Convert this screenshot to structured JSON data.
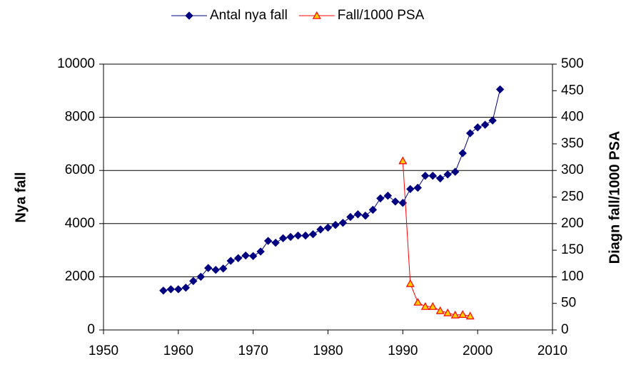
{
  "chart_data": {
    "type": "line",
    "x": [
      1958,
      1959,
      1960,
      1961,
      1962,
      1963,
      1964,
      1965,
      1966,
      1967,
      1968,
      1969,
      1970,
      1971,
      1972,
      1973,
      1974,
      1975,
      1976,
      1977,
      1978,
      1979,
      1980,
      1981,
      1982,
      1983,
      1984,
      1985,
      1986,
      1987,
      1988,
      1989,
      1990,
      1991,
      1992,
      1993,
      1994,
      1995,
      1996,
      1997,
      1998,
      1999,
      2000,
      2001,
      2002,
      2003
    ],
    "series": [
      {
        "name": "Antal nya fall",
        "color": "#000080",
        "marker": "diamond",
        "marker_fill": "#000080",
        "values": [
          1480,
          1530,
          1530,
          1590,
          1840,
          2000,
          2330,
          2260,
          2310,
          2600,
          2700,
          2800,
          2780,
          2950,
          3350,
          3280,
          3450,
          3500,
          3550,
          3550,
          3600,
          3780,
          3850,
          3950,
          4030,
          4250,
          4350,
          4300,
          4520,
          4950,
          5050,
          4830,
          4780,
          5300,
          5350,
          5800,
          5800,
          5700,
          5850,
          5950,
          6650,
          7400,
          7620,
          7720,
          7880,
          9050
        ]
      },
      {
        "name": "Fall/1000 PSA",
        "color": "#ff0000",
        "marker": "triangle",
        "marker_fill": "#ffcc00",
        "axis": "y2",
        "values": [
          null,
          null,
          null,
          null,
          null,
          null,
          null,
          null,
          null,
          null,
          null,
          null,
          null,
          null,
          null,
          null,
          null,
          null,
          null,
          null,
          null,
          null,
          null,
          null,
          null,
          null,
          null,
          null,
          null,
          null,
          null,
          null,
          318,
          87,
          52,
          44,
          44,
          36,
          32,
          28,
          29,
          26,
          null,
          null,
          null,
          null
        ]
      }
    ],
    "xlim": [
      1950,
      2010
    ],
    "xticks": [
      1950,
      1960,
      1970,
      1980,
      1990,
      2000,
      2010
    ],
    "ylim": [
      0,
      10000
    ],
    "yticks": [
      0,
      2000,
      4000,
      6000,
      8000,
      10000
    ],
    "y2lim": [
      0,
      500
    ],
    "y2ticks": [
      0,
      50,
      100,
      150,
      200,
      250,
      300,
      350,
      400,
      450,
      500
    ],
    "ylabel": "Nya fall",
    "y2label": "Diagn fall/1000 PSA",
    "grid": true,
    "legend": "top"
  }
}
